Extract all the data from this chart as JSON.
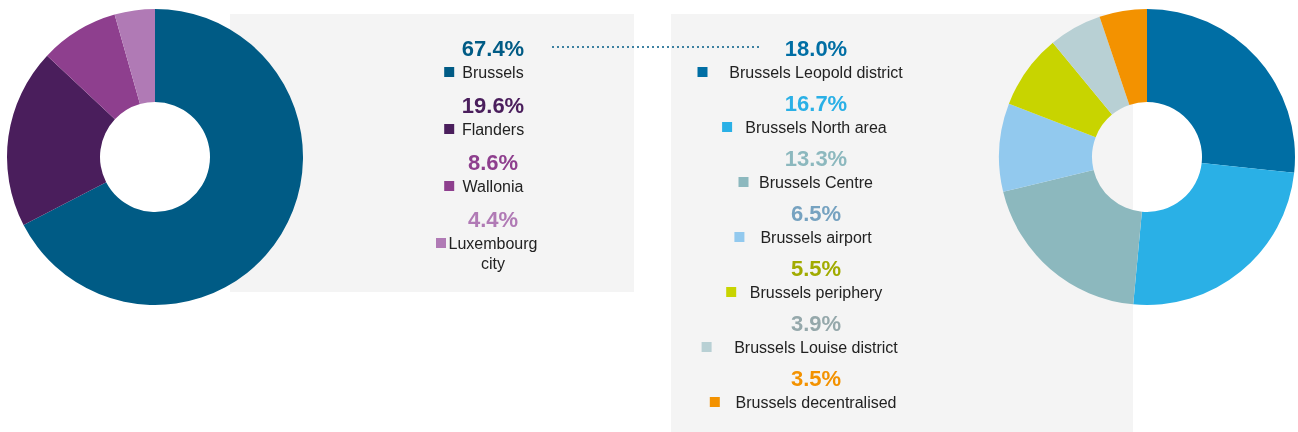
{
  "chart_data": [
    {
      "type": "donut",
      "legend": "right",
      "categories": [
        "Brussels",
        "Flanders",
        "Wallonia",
        "Luxembourg city"
      ],
      "values": [
        67.4,
        19.6,
        8.6,
        4.4
      ],
      "colors": [
        "#005b85",
        "#4a1e5c",
        "#8e3f8e",
        "#b07ab5"
      ],
      "value_labels": [
        "67.4%",
        "19.6%",
        "8.6%",
        "4.4%"
      ]
    },
    {
      "type": "donut",
      "legend": "left",
      "categories": [
        "Brussels Leopold district",
        "Brussels North area",
        "Brussels Centre",
        "Brussels airport",
        "Brussels periphery",
        "Brussels Louise district",
        "Brussels decentralised"
      ],
      "values": [
        18.0,
        16.7,
        13.3,
        6.5,
        5.5,
        3.9,
        3.5
      ],
      "colors": [
        "#006ea4",
        "#2ab0e6",
        "#8cb8be",
        "#92c9ee",
        "#c8d400",
        "#b8d0d4",
        "#f39200"
      ],
      "value_labels": [
        "18.0%",
        "16.7%",
        "13.3%",
        "6.5%",
        "5.5%",
        "3.9%",
        "3.5%"
      ]
    }
  ]
}
